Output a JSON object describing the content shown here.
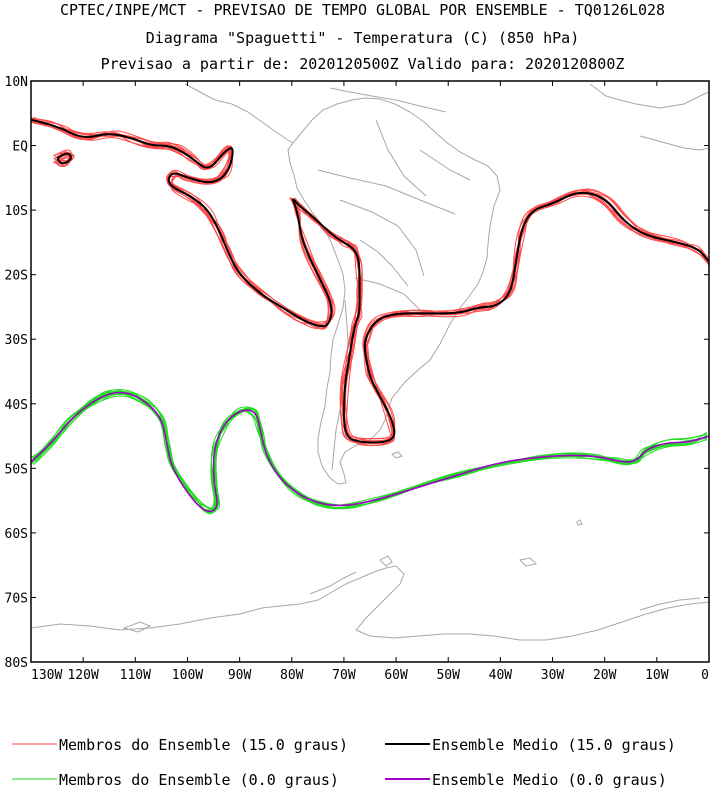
{
  "title": {
    "line1": "CPTEC/INPE/MCT - PREVISAO DE TEMPO GLOBAL POR ENSEMBLE - TQ0126L028",
    "line2": "Diagrama \"Spaguetti\" - Temperatura (C) (850 hPa)",
    "line3": "Previsao a partir de: 2020120500Z  Valido para: 2020120800Z"
  },
  "axes": {
    "lat_labels": [
      "10N",
      "EQ",
      "10S",
      "20S",
      "30S",
      "40S",
      "50S",
      "60S",
      "70S",
      "80S"
    ],
    "lon_labels": [
      "130W",
      "120W",
      "110W",
      "100W",
      "90W",
      "80W",
      "70W",
      "60W",
      "50W",
      "40W",
      "30W",
      "20W",
      "10W",
      "0"
    ]
  },
  "legend": {
    "members_15": "Membros do Ensemble (15.0 graus)",
    "mean_15": "Ensemble Medio (15.0 graus)",
    "members_0": "Membros do Ensemble (0.0 graus)",
    "mean_0": "Ensemble Medio (0.0 graus)"
  },
  "colors": {
    "members_15": "#ff4a4a",
    "mean_15": "#000000",
    "members_0": "#22dd22",
    "mean_0": "#a000c8",
    "coast": "#a8a8a8"
  },
  "contours": {
    "mean_15_segments": [
      [
        [
          -130,
          4
        ],
        [
          -125,
          3
        ],
        [
          -120,
          1
        ],
        [
          -115,
          2
        ],
        [
          -110,
          1
        ],
        [
          -107,
          0
        ],
        [
          -103,
          0
        ],
        [
          -99,
          -2
        ],
        [
          -96,
          -4
        ],
        [
          -93,
          -1
        ],
        [
          -91,
          0
        ],
        [
          -92,
          -4
        ],
        [
          -95,
          -6
        ],
        [
          -100,
          -5
        ],
        [
          -103,
          -4
        ],
        [
          -104,
          -6
        ],
        [
          -99,
          -8
        ],
        [
          -96,
          -10
        ],
        [
          -94,
          -13
        ],
        [
          -92,
          -17
        ],
        [
          -90,
          -20
        ],
        [
          -86,
          -23
        ],
        [
          -82,
          -25
        ],
        [
          -78,
          -27
        ],
        [
          -75,
          -28
        ],
        [
          -73,
          -28
        ],
        [
          -72,
          -25
        ],
        [
          -75,
          -20
        ],
        [
          -78,
          -15
        ],
        [
          -79,
          -10
        ],
        [
          -80,
          -8
        ],
        [
          -79,
          -9
        ],
        [
          -76,
          -11
        ],
        [
          -72,
          -14
        ],
        [
          -70,
          -15
        ],
        [
          -68,
          -16
        ],
        [
          -67,
          -18
        ],
        [
          -67,
          -23
        ],
        [
          -67,
          -26
        ],
        [
          -68,
          -28
        ],
        [
          -69,
          -33
        ],
        [
          -70,
          -38
        ],
        [
          -70,
          -45
        ],
        [
          -67,
          -46
        ],
        [
          -62,
          -46
        ],
        [
          -60,
          -45
        ],
        [
          -61,
          -42
        ],
        [
          -63,
          -39
        ],
        [
          -65,
          -36
        ],
        [
          -66,
          -32
        ],
        [
          -66,
          -30
        ],
        [
          -64,
          -27
        ],
        [
          -60,
          -26
        ],
        [
          -55,
          -26
        ],
        [
          -48,
          -26
        ],
        [
          -44,
          -25
        ],
        [
          -41,
          -25
        ],
        [
          -38,
          -23
        ],
        [
          -37,
          -18
        ],
        [
          -36,
          -13
        ],
        [
          -34,
          -10
        ],
        [
          -30,
          -9
        ],
        [
          -25,
          -7
        ],
        [
          -20,
          -8
        ],
        [
          -16,
          -12
        ],
        [
          -12,
          -14
        ],
        [
          -6,
          -15
        ],
        [
          -2,
          -16
        ],
        [
          0,
          -18
        ]
      ],
      [
        [
          -125,
          -2
        ],
        [
          -124,
          -3
        ],
        [
          -122,
          -2
        ],
        [
          -123,
          -1
        ],
        [
          -125,
          -2
        ]
      ]
    ],
    "mean_0_segments": [
      [
        [
          -130,
          -49
        ],
        [
          -126,
          -46
        ],
        [
          -122,
          -42
        ],
        [
          -117,
          -39
        ],
        [
          -113,
          -38
        ],
        [
          -109,
          -39
        ],
        [
          -105,
          -42
        ],
        [
          -104,
          -46
        ],
        [
          -103,
          -50
        ],
        [
          -99,
          -55
        ],
        [
          -96,
          -57
        ],
        [
          -94,
          -56
        ],
        [
          -95,
          -52
        ],
        [
          -95,
          -47
        ],
        [
          -93,
          -43
        ],
        [
          -90,
          -41
        ],
        [
          -87,
          -41
        ],
        [
          -86,
          -44
        ],
        [
          -85,
          -48
        ],
        [
          -82,
          -52
        ],
        [
          -77,
          -55
        ],
        [
          -71,
          -56
        ],
        [
          -64,
          -55
        ],
        [
          -56,
          -53
        ],
        [
          -48,
          -51
        ],
        [
          -40,
          -49
        ],
        [
          -30,
          -48
        ],
        [
          -22,
          -48
        ],
        [
          -17,
          -49
        ],
        [
          -14,
          -49
        ],
        [
          -12,
          -47
        ],
        [
          -8,
          -46
        ],
        [
          -4,
          -46
        ],
        [
          0,
          -45
        ]
      ]
    ]
  }
}
